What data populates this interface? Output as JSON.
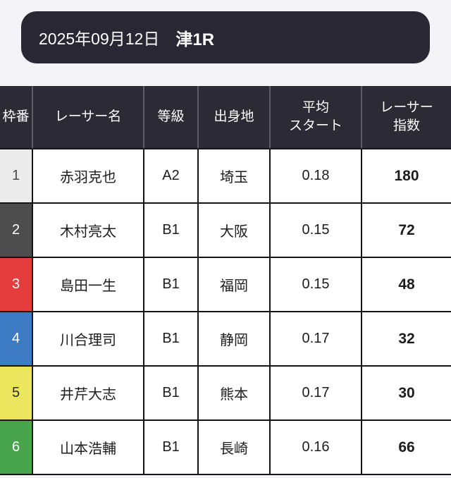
{
  "banner": {
    "date": "2025年09月12日",
    "race": "津1R",
    "bg": "#282733",
    "text_color": "#ffffff"
  },
  "table": {
    "header_bg": "#2b2a35",
    "header_text_color": "#ffffff",
    "header_divider_color": "#5d5c66",
    "body_border_color": "#141414",
    "columns": [
      {
        "label": "枠番"
      },
      {
        "label": "レーサー名"
      },
      {
        "label": "等級"
      },
      {
        "label": "出身地"
      },
      {
        "label": "平均\nスタート"
      },
      {
        "label": "レーサー\n指数"
      }
    ],
    "rows": [
      {
        "waku": "1",
        "name": "赤羽克也",
        "grade": "A2",
        "origin": "埼玉",
        "avg_start": "0.18",
        "index": "180",
        "waku_bg": "#ebebeb",
        "waku_color": "#4a4a4a"
      },
      {
        "waku": "2",
        "name": "木村亮太",
        "grade": "B1",
        "origin": "大阪",
        "avg_start": "0.15",
        "index": "72",
        "waku_bg": "#4d4d4d",
        "waku_color": "#ffffff"
      },
      {
        "waku": "3",
        "name": "島田一生",
        "grade": "B1",
        "origin": "福岡",
        "avg_start": "0.15",
        "index": "48",
        "waku_bg": "#e53d3d",
        "waku_color": "#ffffff"
      },
      {
        "waku": "4",
        "name": "川合理司",
        "grade": "B1",
        "origin": "静岡",
        "avg_start": "0.17",
        "index": "32",
        "waku_bg": "#3d7cc4",
        "waku_color": "#ffffff"
      },
      {
        "waku": "5",
        "name": "井芹大志",
        "grade": "B1",
        "origin": "熊本",
        "avg_start": "0.17",
        "index": "30",
        "waku_bg": "#ece65f",
        "waku_color": "#2b2b2b"
      },
      {
        "waku": "6",
        "name": "山本浩輔",
        "grade": "B1",
        "origin": "長崎",
        "avg_start": "0.16",
        "index": "66",
        "waku_bg": "#49a44e",
        "waku_color": "#ffffff"
      }
    ]
  }
}
